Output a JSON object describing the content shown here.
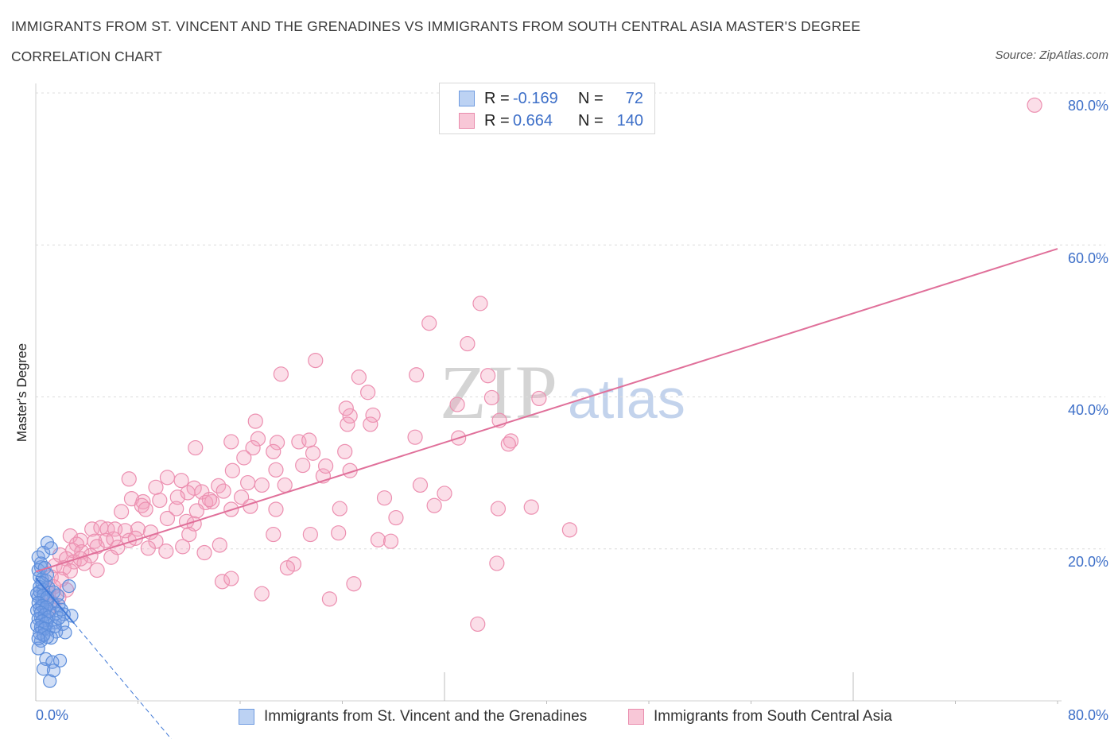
{
  "header": {
    "title": "IMMIGRANTS FROM ST. VINCENT AND THE GRENADINES VS IMMIGRANTS FROM SOUTH CENTRAL ASIA MASTER'S DEGREE",
    "subtitle": "CORRELATION CHART",
    "source": "Source: ZipAtlas.com"
  },
  "legend": {
    "rows": [
      {
        "r_label": "R =",
        "r_value": "-0.169",
        "n_label": "N =",
        "n_value": "72"
      },
      {
        "r_label": "R =",
        "r_value": "0.664",
        "n_label": "N =",
        "n_value": "140"
      }
    ]
  },
  "bottom_legend": {
    "blue": "Immigrants from St. Vincent and the Grenadines",
    "pink": "Immigrants from South Central Asia"
  },
  "axes": {
    "ylabel": "Master's Degree",
    "y_ticks": [
      "80.0%",
      "60.0%",
      "40.0%",
      "20.0%"
    ],
    "x_left": "0.0%",
    "x_right": "80.0%"
  },
  "watermark": {
    "zip": "ZIP",
    "atlas": "atlas"
  },
  "colors": {
    "blue": "#4a7fd4",
    "pink": "#e8789f",
    "tick_text": "#3d6fc8"
  },
  "chart_data": {
    "type": "scatter",
    "xlim": [
      0,
      80
    ],
    "ylim": [
      0,
      80
    ],
    "grid": true,
    "series": [
      {
        "name": "Immigrants from St. Vincent and the Grenadines",
        "color": "#4a7fd4",
        "trend": {
          "x0": 0,
          "y0": 16.2,
          "x1": 3,
          "y1": 10.2,
          "dash_to_x": 11.6
        },
        "points": [
          [
            0.2,
            18.9
          ],
          [
            0.4,
            17.6
          ],
          [
            0.6,
            19.5
          ],
          [
            0.9,
            20.8
          ],
          [
            1.2,
            20.1
          ],
          [
            0.3,
            16.3
          ],
          [
            0.5,
            16.0
          ],
          [
            0.8,
            15.8
          ],
          [
            0.3,
            15.0
          ],
          [
            0.6,
            14.6
          ],
          [
            1.0,
            14.9
          ],
          [
            1.4,
            14.3
          ],
          [
            0.2,
            13.7
          ],
          [
            0.5,
            13.3
          ],
          [
            0.9,
            13.1
          ],
          [
            1.3,
            12.8
          ],
          [
            1.8,
            12.6
          ],
          [
            0.3,
            12.2
          ],
          [
            0.7,
            12.0
          ],
          [
            1.1,
            11.8
          ],
          [
            1.6,
            11.5
          ],
          [
            2.2,
            11.4
          ],
          [
            2.8,
            11.2
          ],
          [
            0.4,
            10.9
          ],
          [
            0.9,
            10.6
          ],
          [
            1.5,
            10.3
          ],
          [
            2.1,
            10.1
          ],
          [
            0.5,
            9.6
          ],
          [
            1.0,
            9.4
          ],
          [
            1.6,
            9.1
          ],
          [
            2.3,
            9.0
          ],
          [
            0.6,
            8.6
          ],
          [
            1.2,
            8.3
          ],
          [
            0.4,
            7.9
          ],
          [
            0.2,
            6.9
          ],
          [
            0.8,
            5.5
          ],
          [
            1.3,
            5.1
          ],
          [
            1.9,
            5.3
          ],
          [
            0.6,
            4.2
          ],
          [
            1.4,
            4.0
          ],
          [
            1.1,
            2.6
          ],
          [
            2.6,
            15.1
          ],
          [
            0.2,
            17.2
          ],
          [
            0.4,
            18.1
          ],
          [
            0.7,
            17.5
          ],
          [
            0.1,
            14.1
          ],
          [
            0.3,
            14.4
          ],
          [
            0.6,
            13.9
          ],
          [
            0.9,
            13.6
          ],
          [
            0.2,
            12.9
          ],
          [
            0.5,
            12.5
          ],
          [
            0.8,
            12.3
          ],
          [
            0.1,
            11.9
          ],
          [
            0.4,
            11.6
          ],
          [
            0.7,
            11.3
          ],
          [
            1.0,
            11.0
          ],
          [
            0.2,
            10.8
          ],
          [
            0.5,
            10.5
          ],
          [
            0.8,
            10.2
          ],
          [
            0.1,
            9.9
          ],
          [
            0.4,
            9.7
          ],
          [
            0.7,
            9.5
          ],
          [
            0.3,
            8.9
          ],
          [
            0.6,
            8.7
          ],
          [
            0.9,
            8.4
          ],
          [
            0.2,
            8.2
          ],
          [
            1.5,
            9.8
          ],
          [
            1.8,
            10.9
          ],
          [
            0.9,
            16.6
          ],
          [
            1.7,
            13.9
          ],
          [
            2.0,
            12.0
          ],
          [
            0.5,
            15.5
          ]
        ]
      },
      {
        "name": "Immigrants from South Central Asia",
        "color": "#e8789f",
        "trend": {
          "x0": 0,
          "y0": 17.0,
          "x1": 80,
          "y1": 59.5
        },
        "points": [
          [
            78.2,
            78.4
          ],
          [
            34.8,
            52.3
          ],
          [
            30.8,
            49.7
          ],
          [
            33.8,
            47.0
          ],
          [
            21.9,
            44.8
          ],
          [
            19.2,
            43.0
          ],
          [
            25.3,
            42.6
          ],
          [
            29.8,
            42.9
          ],
          [
            35.4,
            42.8
          ],
          [
            26.0,
            40.6
          ],
          [
            35.7,
            39.9
          ],
          [
            39.4,
            39.8
          ],
          [
            33.0,
            39.0
          ],
          [
            24.6,
            37.5
          ],
          [
            26.4,
            37.6
          ],
          [
            17.2,
            36.8
          ],
          [
            36.3,
            36.9
          ],
          [
            24.4,
            36.4
          ],
          [
            26.2,
            36.4
          ],
          [
            17.4,
            34.5
          ],
          [
            15.3,
            34.1
          ],
          [
            18.9,
            34.0
          ],
          [
            20.6,
            34.1
          ],
          [
            21.4,
            34.3
          ],
          [
            29.7,
            34.7
          ],
          [
            33.1,
            34.6
          ],
          [
            37.2,
            34.2
          ],
          [
            37.0,
            33.8
          ],
          [
            12.5,
            33.3
          ],
          [
            17.0,
            33.3
          ],
          [
            16.3,
            32.0
          ],
          [
            18.6,
            32.8
          ],
          [
            21.7,
            32.6
          ],
          [
            24.2,
            32.8
          ],
          [
            20.9,
            31.0
          ],
          [
            15.4,
            30.3
          ],
          [
            18.8,
            30.4
          ],
          [
            24.6,
            30.3
          ],
          [
            22.5,
            29.6
          ],
          [
            10.3,
            29.4
          ],
          [
            7.3,
            29.2
          ],
          [
            11.4,
            29.0
          ],
          [
            12.4,
            28.0
          ],
          [
            14.3,
            28.3
          ],
          [
            16.6,
            28.7
          ],
          [
            19.5,
            28.4
          ],
          [
            30.1,
            28.4
          ],
          [
            9.4,
            28.1
          ],
          [
            11.9,
            27.4
          ],
          [
            13.0,
            27.5
          ],
          [
            14.7,
            27.6
          ],
          [
            7.5,
            26.6
          ],
          [
            8.4,
            26.2
          ],
          [
            9.7,
            26.4
          ],
          [
            11.1,
            26.8
          ],
          [
            13.3,
            26.1
          ],
          [
            13.8,
            26.2
          ],
          [
            16.1,
            26.8
          ],
          [
            27.3,
            26.7
          ],
          [
            32.0,
            27.3
          ],
          [
            8.3,
            25.7
          ],
          [
            8.6,
            25.2
          ],
          [
            6.7,
            24.9
          ],
          [
            11.0,
            25.3
          ],
          [
            12.6,
            25.0
          ],
          [
            15.3,
            25.2
          ],
          [
            16.8,
            25.6
          ],
          [
            18.8,
            25.2
          ],
          [
            23.8,
            25.3
          ],
          [
            36.2,
            25.3
          ],
          [
            38.8,
            25.5
          ],
          [
            10.3,
            24.0
          ],
          [
            11.8,
            23.6
          ],
          [
            12.4,
            23.3
          ],
          [
            28.2,
            24.1
          ],
          [
            4.4,
            22.6
          ],
          [
            5.1,
            22.8
          ],
          [
            5.6,
            22.6
          ],
          [
            6.2,
            22.6
          ],
          [
            7.0,
            22.4
          ],
          [
            8.0,
            22.6
          ],
          [
            18.6,
            21.9
          ],
          [
            21.5,
            21.9
          ],
          [
            23.7,
            22.1
          ],
          [
            41.8,
            22.5
          ],
          [
            2.7,
            21.7
          ],
          [
            3.5,
            21.1
          ],
          [
            4.6,
            21.0
          ],
          [
            5.5,
            21.1
          ],
          [
            6.1,
            21.3
          ],
          [
            7.3,
            21.1
          ],
          [
            9.4,
            21.0
          ],
          [
            26.8,
            21.2
          ],
          [
            27.8,
            21.0
          ],
          [
            3.2,
            20.6
          ],
          [
            4.8,
            20.3
          ],
          [
            6.4,
            20.2
          ],
          [
            8.8,
            20.1
          ],
          [
            11.5,
            20.3
          ],
          [
            14.4,
            20.5
          ],
          [
            2.9,
            19.8
          ],
          [
            3.6,
            19.6
          ],
          [
            4.3,
            19.1
          ],
          [
            10.2,
            19.7
          ],
          [
            13.2,
            19.5
          ],
          [
            1.9,
            19.2
          ],
          [
            2.4,
            18.7
          ],
          [
            3.0,
            18.3
          ],
          [
            3.8,
            18.1
          ],
          [
            1.5,
            17.8
          ],
          [
            2.2,
            17.5
          ],
          [
            2.7,
            17.1
          ],
          [
            4.8,
            17.2
          ],
          [
            20.2,
            18.0
          ],
          [
            19.7,
            17.5
          ],
          [
            36.1,
            18.1
          ],
          [
            1.2,
            16.3
          ],
          [
            2.0,
            16.0
          ],
          [
            1.4,
            15.0
          ],
          [
            2.4,
            14.6
          ],
          [
            14.6,
            15.7
          ],
          [
            15.3,
            16.1
          ],
          [
            1.0,
            14.2
          ],
          [
            1.8,
            13.6
          ],
          [
            17.7,
            14.1
          ],
          [
            24.9,
            15.4
          ],
          [
            23.0,
            13.4
          ],
          [
            34.6,
            10.1
          ],
          [
            1.3,
            12.9
          ],
          [
            0.9,
            11.9
          ],
          [
            3.5,
            18.7
          ],
          [
            5.9,
            18.9
          ],
          [
            7.8,
            21.4
          ],
          [
            9.0,
            22.2
          ],
          [
            12.0,
            21.9
          ],
          [
            13.6,
            26.5
          ],
          [
            17.7,
            28.4
          ],
          [
            22.7,
            30.9
          ],
          [
            31.2,
            25.7
          ],
          [
            24.3,
            38.5
          ]
        ]
      }
    ]
  }
}
